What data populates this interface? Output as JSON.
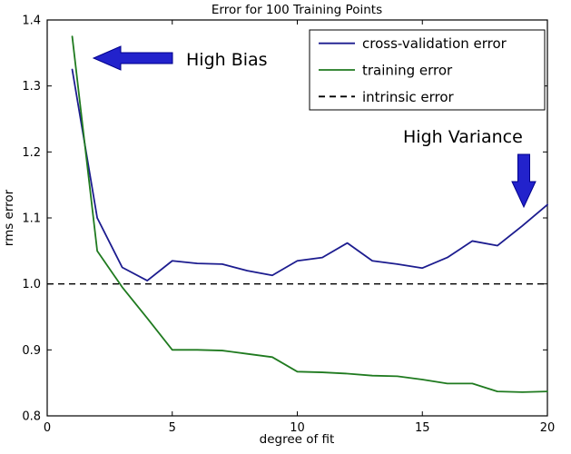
{
  "chart_data": {
    "type": "line",
    "title": "Error for 100 Training Points",
    "xlabel": "degree of fit",
    "ylabel": "rms error",
    "xlim": [
      0,
      20
    ],
    "ylim": [
      0.8,
      1.4
    ],
    "x_ticks": [
      0,
      5,
      10,
      15,
      20
    ],
    "y_ticks": [
      0.8,
      0.9,
      1.0,
      1.1,
      1.2,
      1.3,
      1.4
    ],
    "grid": false,
    "x": [
      1,
      2,
      3,
      4,
      5,
      6,
      7,
      8,
      9,
      10,
      11,
      12,
      13,
      14,
      15,
      16,
      17,
      18,
      19,
      20
    ],
    "series": [
      {
        "name": "cross-validation error",
        "color": "#1c1c8f",
        "values": [
          1.325,
          1.1,
          1.025,
          1.005,
          1.035,
          1.031,
          1.03,
          1.02,
          1.013,
          1.035,
          1.04,
          1.062,
          1.035,
          1.03,
          1.024,
          1.04,
          1.065,
          1.058,
          1.088,
          1.12
        ]
      },
      {
        "name": "training error",
        "color": "#1f7a1f",
        "values": [
          1.375,
          1.05,
          0.995,
          0.948,
          0.9,
          0.9,
          0.899,
          0.894,
          0.889,
          0.867,
          0.866,
          0.864,
          0.861,
          0.86,
          0.855,
          0.849,
          0.849,
          0.837,
          0.836,
          0.837
        ]
      }
    ],
    "reference_line": {
      "name": "intrinsic error",
      "value": 1.0,
      "color": "#000000",
      "style": "dashed"
    },
    "legend": {
      "position": "upper-right",
      "entries": [
        "cross-validation error",
        "training error",
        "intrinsic error"
      ]
    },
    "annotations": [
      {
        "text": "High Bias",
        "arrow_direction": "left",
        "arrow_color": "#2222cc"
      },
      {
        "text": "High Variance",
        "arrow_direction": "down",
        "arrow_color": "#2222cc"
      }
    ]
  }
}
